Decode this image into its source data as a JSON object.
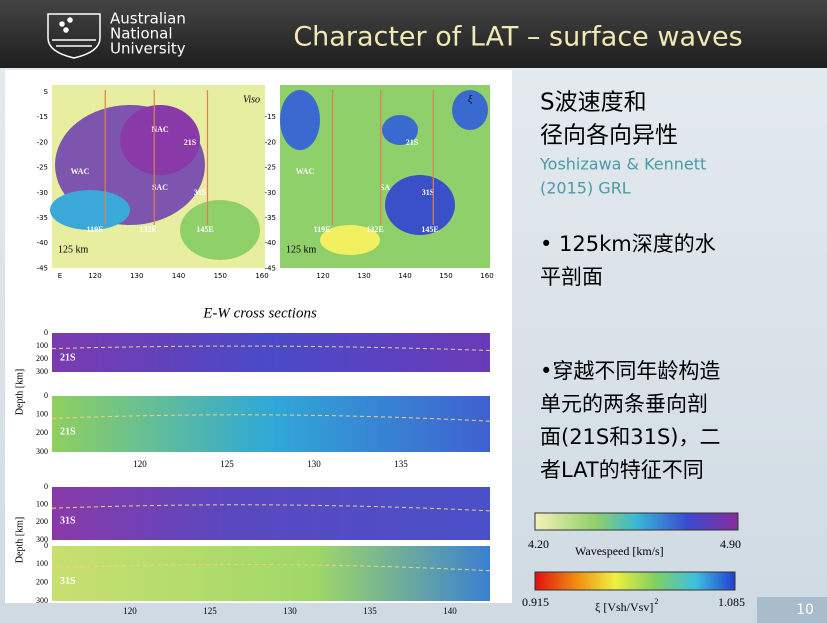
{
  "header": {
    "logo_lines": [
      "Australian",
      "National",
      "University"
    ],
    "title": "Character of LAT – surface waves"
  },
  "maps": [
    {
      "corner_label": "Viso",
      "lat_labels": [
        "S",
        "-15",
        "-20",
        "-25",
        "-30",
        "-35",
        "-40",
        "-45"
      ],
      "lon_labels": [
        "E",
        "120",
        "130",
        "140",
        "150",
        "160"
      ],
      "region_labels": [
        "NAC",
        "WAC",
        "SAC",
        "21S",
        "31S",
        "119E",
        "132E",
        "145E"
      ],
      "depth_label": "125 km"
    },
    {
      "corner_label": "ξ",
      "lat_labels": [
        "-15",
        "-20",
        "-25",
        "-30",
        "-35",
        "-40",
        "-45"
      ],
      "lon_labels": [
        "120",
        "130",
        "140",
        "150",
        "160"
      ],
      "region_labels": [
        "WAC",
        "SA",
        "21S",
        "31S",
        "119E",
        "132E",
        "145E"
      ],
      "depth_label": "125 km"
    }
  ],
  "sections": {
    "title": "E-W cross sections",
    "depth_axis_label": "Depth [km]",
    "strips": [
      {
        "label": "21S",
        "depth_ticks": [
          "0",
          "100",
          "200",
          "300"
        ]
      },
      {
        "label": "21S",
        "depth_ticks": [
          "0",
          "100",
          "200",
          "300"
        ]
      },
      {
        "label": "31S",
        "depth_ticks": [
          "0",
          "100",
          "200",
          "300"
        ]
      },
      {
        "label": "31S",
        "depth_ticks": [
          "0",
          "100",
          "200",
          "300"
        ]
      }
    ],
    "upper_lon_ticks": [
      "120",
      "125",
      "130",
      "135"
    ],
    "lower_lon_ticks": [
      "120",
      "125",
      "130",
      "135",
      "140"
    ]
  },
  "sidebar": {
    "heading_lines": [
      "S波速度和",
      "径向各向异性"
    ],
    "citation_lines": [
      "Yoshizawa & Kennett",
      "(2015) GRL"
    ],
    "bullets": [
      [
        "• 125km深度的水",
        "平剖面"
      ],
      [
        "•穿越不同年龄构造",
        "单元的两条垂向剖",
        "面(21S和31S)，二",
        "者LAT的特征不同"
      ]
    ]
  },
  "colorbars": [
    {
      "min_label": "4.20",
      "title": "Wavespeed [km/s]",
      "max_label": "4.90"
    },
    {
      "min_label": "0.915",
      "title": "ξ  [Vsh/Vsv]",
      "title_superscript": "2",
      "max_label": "1.085"
    }
  ],
  "page_number": "10"
}
